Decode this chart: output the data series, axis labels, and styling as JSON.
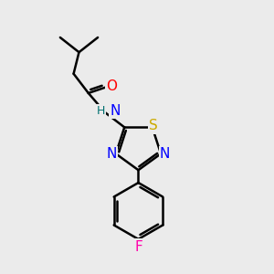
{
  "bg_color": "#ebebeb",
  "bond_color": "#000000",
  "atom_colors": {
    "N": "#0000ff",
    "O": "#ff0000",
    "S": "#ccaa00",
    "F": "#ff00aa",
    "H": "#007070"
  },
  "font_size": 10,
  "line_width": 1.8,
  "figsize": [
    3.0,
    3.0
  ],
  "dpi": 100
}
